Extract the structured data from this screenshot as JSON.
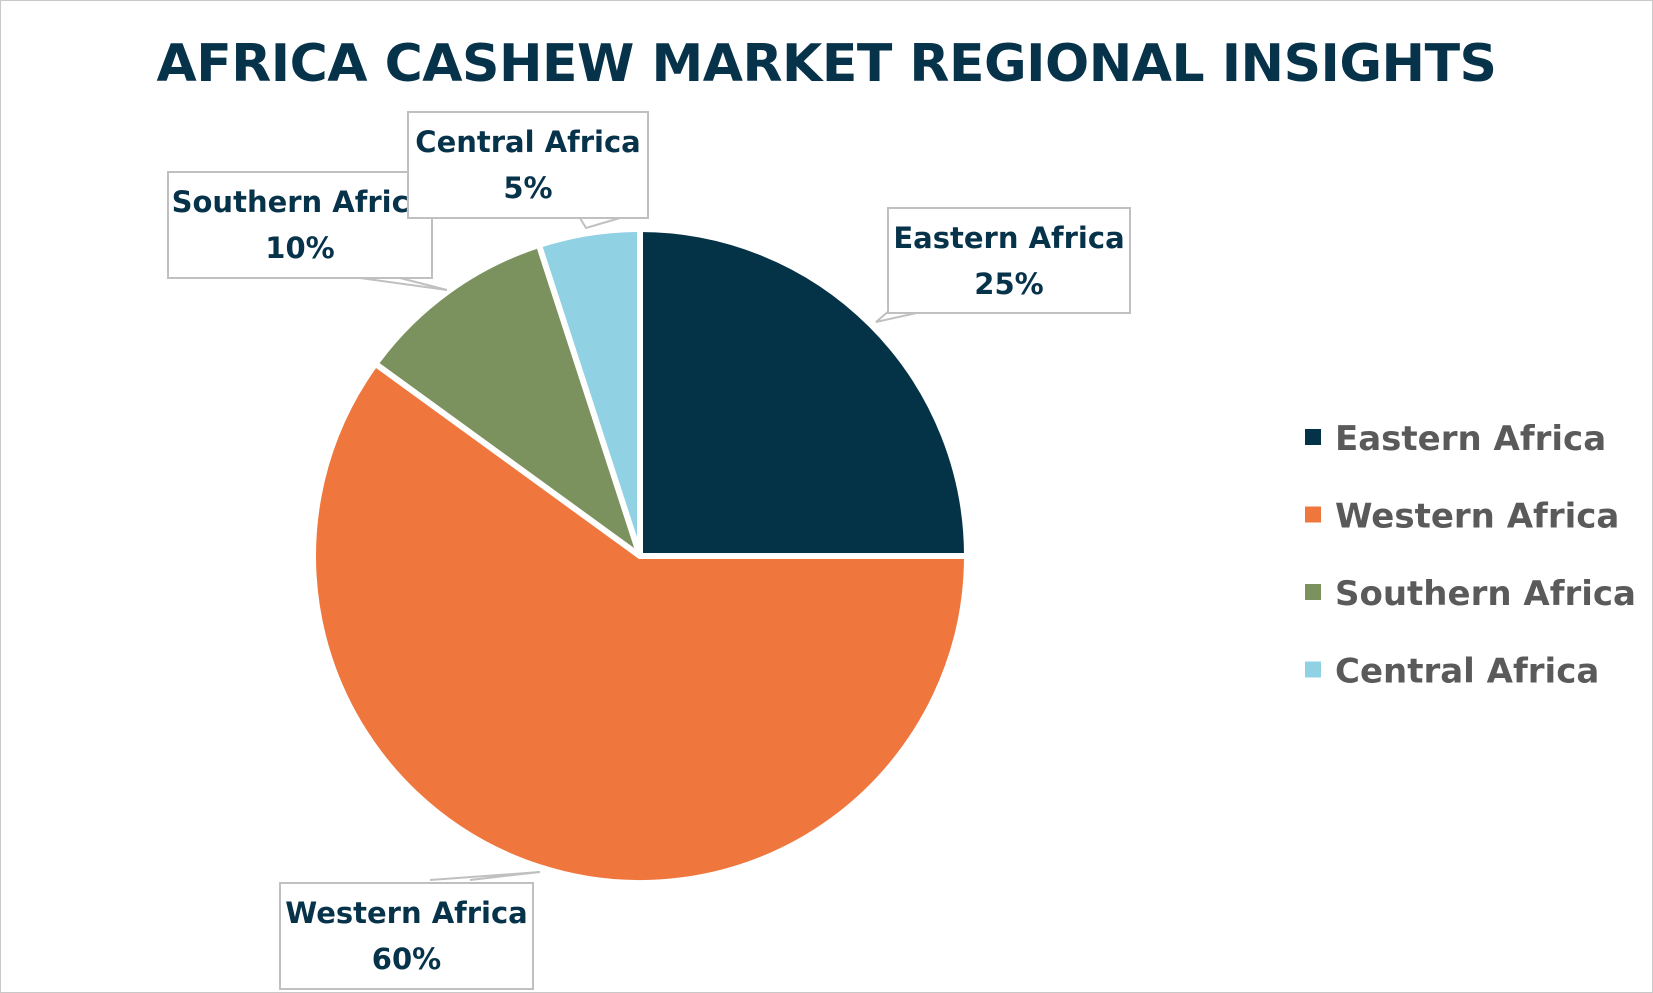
{
  "chart_data": {
    "type": "pie",
    "title": "AFRICA CASHEW MARKET REGIONAL INSIGHTS",
    "slices": [
      {
        "label": "Eastern Africa",
        "value": 25,
        "display": "25%",
        "color": "#043347"
      },
      {
        "label": "Western Africa",
        "value": 60,
        "display": "60%",
        "color": "#ef773e"
      },
      {
        "label": "Southern Africa",
        "value": 10,
        "display": "10%",
        "color": "#7b915e"
      },
      {
        "label": "Central Africa",
        "value": 5,
        "display": "5%",
        "color": "#90d1e4"
      }
    ],
    "legend": {
      "placement": "right",
      "items": [
        "Eastern Africa",
        "Western Africa",
        "Southern Africa",
        "Central Africa"
      ]
    },
    "start_angle": "12 o'clock",
    "direction": "clockwise"
  }
}
